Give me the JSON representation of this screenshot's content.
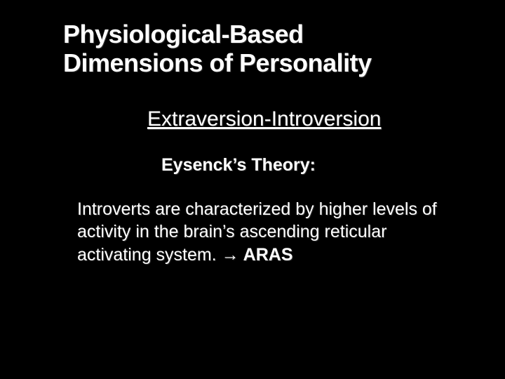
{
  "slide": {
    "background_color": "#000000",
    "text_color": "#ffffff",
    "shadow_color": "rgba(80,80,80,0.6)",
    "title": {
      "line1": "Physiological-Based",
      "line2": "Dimensions of Personality",
      "fontsize": 36,
      "weight": 700
    },
    "subtitle": {
      "text": "Extraversion-Introversion",
      "fontsize": 30,
      "underline": true
    },
    "theory_label": {
      "text": "Eysenck’s Theory:",
      "fontsize": 25,
      "weight": 700
    },
    "body": {
      "text": "Introverts are characterized by higher levels of activity in the brain’s ascending reticular activating system.  ",
      "arrow": "→",
      "acronym": "  ARAS",
      "fontsize": 25
    }
  }
}
